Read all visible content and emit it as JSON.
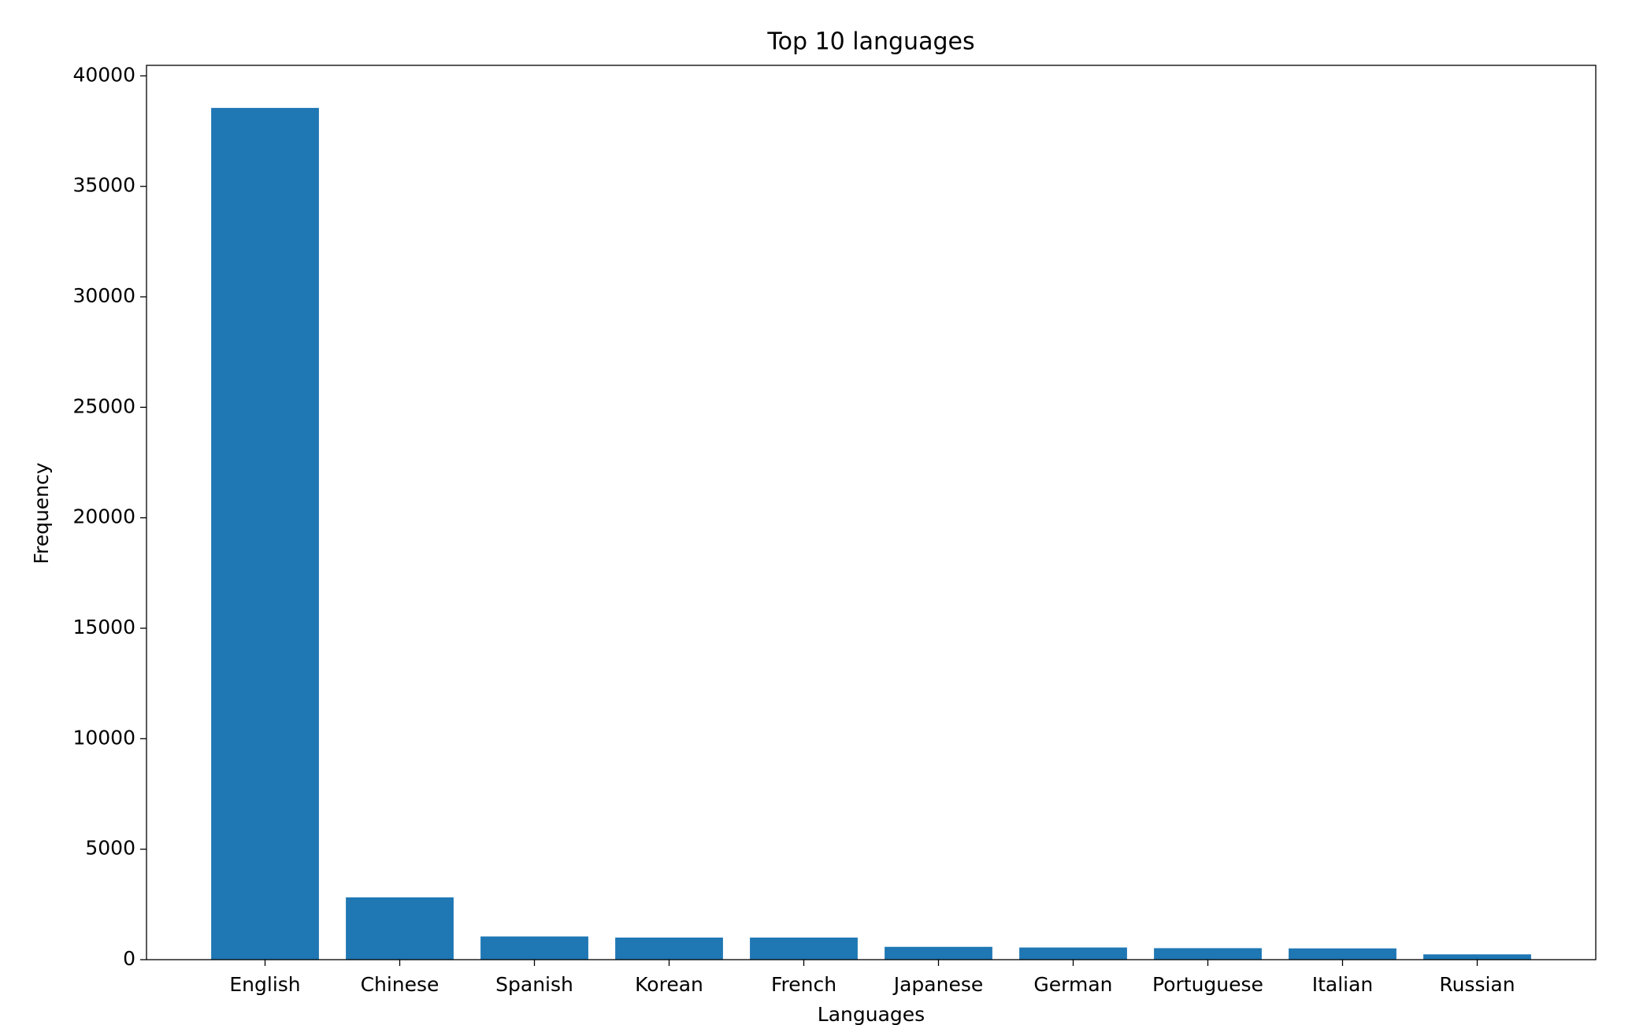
{
  "chart_data": {
    "type": "bar",
    "title": "Top 10 languages",
    "x_label": "Languages",
    "y_label": "Frequency",
    "categories": [
      "English",
      "Chinese",
      "Spanish",
      "Korean",
      "French",
      "Japanese",
      "German",
      "Portuguese",
      "Italian",
      "Russian"
    ],
    "values": [
      38550,
      2820,
      1050,
      1000,
      1000,
      580,
      550,
      520,
      510,
      240
    ],
    "color": "#1f77b4",
    "ylim": [
      0,
      40477
    ],
    "yticks": [
      0,
      5000,
      10000,
      15000,
      20000,
      25000,
      30000,
      35000,
      40000
    ],
    "grid": false
  }
}
